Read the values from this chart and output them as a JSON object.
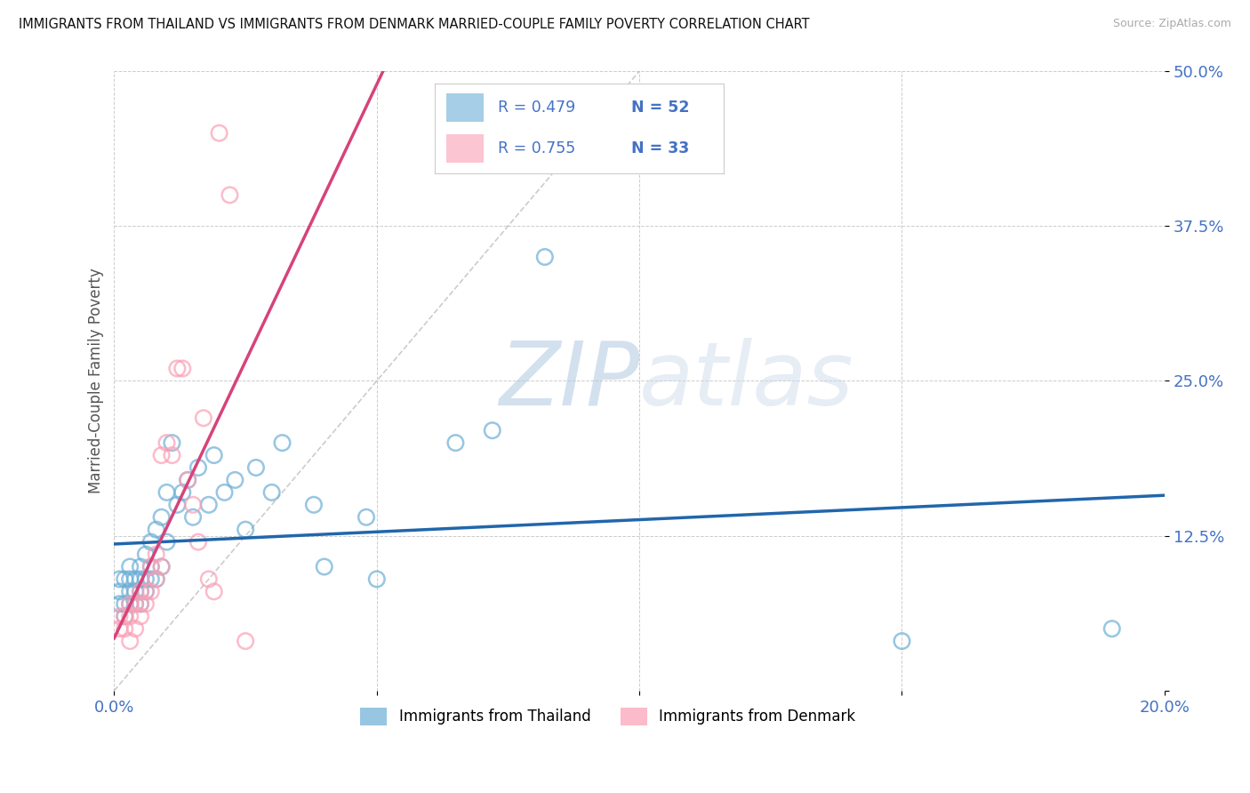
{
  "title": "IMMIGRANTS FROM THAILAND VS IMMIGRANTS FROM DENMARK MARRIED-COUPLE FAMILY POVERTY CORRELATION CHART",
  "source": "Source: ZipAtlas.com",
  "ylabel": "Married-Couple Family Poverty",
  "xlim": [
    0.0,
    0.2
  ],
  "ylim": [
    0.0,
    0.5
  ],
  "xticks": [
    0.0,
    0.05,
    0.1,
    0.15,
    0.2
  ],
  "yticks": [
    0.0,
    0.125,
    0.25,
    0.375,
    0.5
  ],
  "xtick_labels": [
    "0.0%",
    "",
    "",
    "",
    "20.0%"
  ],
  "ytick_labels": [
    "",
    "12.5%",
    "25.0%",
    "37.5%",
    "50.0%"
  ],
  "R_thailand": 0.479,
  "N_thailand": 52,
  "R_denmark": 0.755,
  "N_denmark": 33,
  "color_thailand": "#6baed6",
  "color_denmark": "#fb9fb4",
  "line_color_thailand": "#2166ac",
  "line_color_denmark": "#d6437a",
  "legend_bottom_label1": "Immigrants from Thailand",
  "legend_bottom_label2": "Immigrants from Denmark",
  "legend_color": "#4472c4",
  "watermark_color": "#ccdcec",
  "thailand_x": [
    0.001,
    0.001,
    0.001,
    0.002,
    0.002,
    0.002,
    0.003,
    0.003,
    0.003,
    0.003,
    0.004,
    0.004,
    0.004,
    0.005,
    0.005,
    0.005,
    0.005,
    0.006,
    0.006,
    0.006,
    0.007,
    0.007,
    0.007,
    0.008,
    0.008,
    0.009,
    0.009,
    0.01,
    0.01,
    0.011,
    0.012,
    0.013,
    0.014,
    0.015,
    0.016,
    0.018,
    0.019,
    0.021,
    0.023,
    0.025,
    0.027,
    0.03,
    0.032,
    0.038,
    0.04,
    0.048,
    0.05,
    0.065,
    0.072,
    0.082,
    0.15,
    0.19
  ],
  "thailand_y": [
    0.07,
    0.08,
    0.09,
    0.06,
    0.07,
    0.09,
    0.07,
    0.08,
    0.09,
    0.1,
    0.07,
    0.08,
    0.09,
    0.07,
    0.08,
    0.09,
    0.1,
    0.08,
    0.09,
    0.11,
    0.09,
    0.1,
    0.12,
    0.09,
    0.13,
    0.1,
    0.14,
    0.12,
    0.16,
    0.2,
    0.15,
    0.16,
    0.17,
    0.14,
    0.18,
    0.15,
    0.19,
    0.16,
    0.17,
    0.13,
    0.18,
    0.16,
    0.2,
    0.15,
    0.1,
    0.14,
    0.09,
    0.2,
    0.21,
    0.35,
    0.04,
    0.05
  ],
  "denmark_x": [
    0.001,
    0.001,
    0.002,
    0.002,
    0.003,
    0.003,
    0.003,
    0.004,
    0.004,
    0.005,
    0.005,
    0.005,
    0.006,
    0.006,
    0.007,
    0.007,
    0.008,
    0.008,
    0.009,
    0.009,
    0.01,
    0.011,
    0.012,
    0.013,
    0.014,
    0.015,
    0.016,
    0.017,
    0.018,
    0.019,
    0.02,
    0.022,
    0.025
  ],
  "denmark_y": [
    0.05,
    0.06,
    0.05,
    0.06,
    0.04,
    0.06,
    0.07,
    0.05,
    0.07,
    0.06,
    0.07,
    0.08,
    0.07,
    0.08,
    0.08,
    0.1,
    0.09,
    0.11,
    0.1,
    0.19,
    0.2,
    0.19,
    0.26,
    0.26,
    0.17,
    0.15,
    0.12,
    0.22,
    0.09,
    0.08,
    0.45,
    0.4,
    0.04
  ]
}
